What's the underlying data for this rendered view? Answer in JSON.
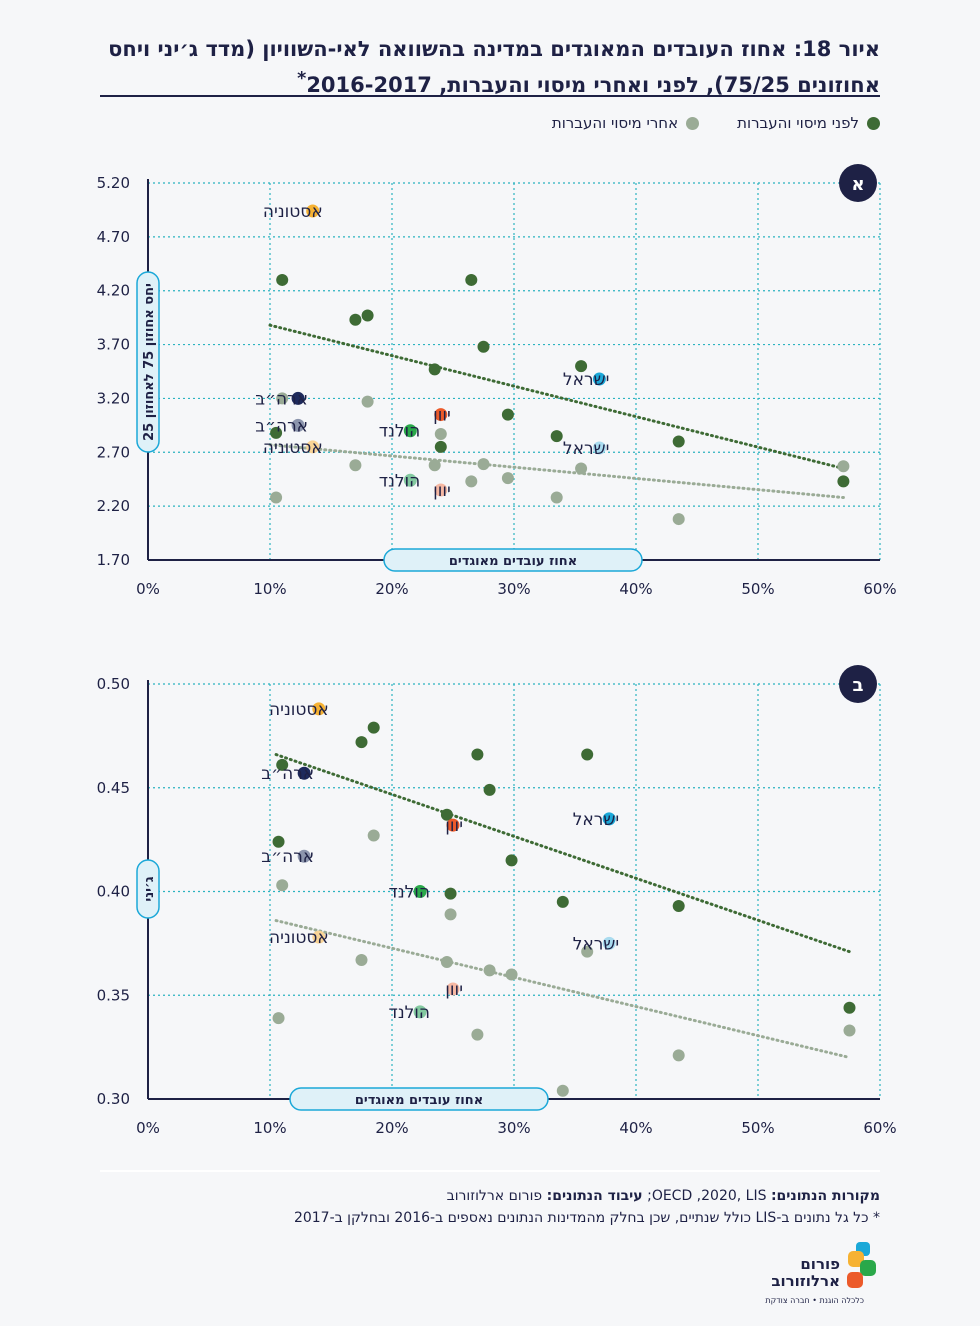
{
  "title": {
    "line1": "איור 18: אחוז העובדים המאוגדים במדינה בהשוואה לאי-השוויון (מדד ג׳יני ויחס",
    "line2": "אחוזונים 75/25), לפני ואחרי מיסוי והעברות, 2016-2017",
    "asterisk": "*"
  },
  "legend": {
    "before_label": "לפני מיסוי והעברות",
    "after_label": "אחרי מיסוי והעברות",
    "before_color": "#3e6b35",
    "after_color": "#9aab96"
  },
  "chart_data": [
    {
      "type": "scatter",
      "panel_badge": "א",
      "ylabel": "יחס אחוזון 75 לאחוזון 25",
      "xlabel": "אחוז עובדים מאוגדים",
      "xlim": [
        0,
        60
      ],
      "ylim": [
        1.7,
        5.2
      ],
      "x_ticks": [
        "0%",
        "10%",
        "20%",
        "30%",
        "40%",
        "50%",
        "60%"
      ],
      "y_ticks": [
        "1.70",
        "2.20",
        "2.70",
        "3.20",
        "3.70",
        "4.20",
        "4.70",
        "5.20"
      ],
      "series": [
        {
          "name": "לפני מיסוי והעברות",
          "points": [
            [
              10.5,
              2.88
            ],
            [
              11.0,
              4.3
            ],
            [
              17.0,
              3.93
            ],
            [
              18.0,
              3.97
            ],
            [
              23.5,
              3.47
            ],
            [
              24.0,
              2.75
            ],
            [
              26.5,
              4.3
            ],
            [
              27.5,
              3.68
            ],
            [
              29.5,
              3.05
            ],
            [
              33.5,
              2.85
            ],
            [
              35.5,
              3.5
            ],
            [
              43.5,
              2.8
            ],
            [
              57.0,
              2.43
            ]
          ],
          "trend": [
            [
              10.0,
              3.88
            ],
            [
              57.0,
              2.55
            ]
          ]
        },
        {
          "name": "אחרי מיסוי והעברות",
          "points": [
            [
              10.5,
              2.28
            ],
            [
              11.0,
              3.2
            ],
            [
              17.0,
              2.58
            ],
            [
              18.0,
              3.17
            ],
            [
              23.5,
              2.58
            ],
            [
              24.0,
              2.87
            ],
            [
              26.5,
              2.43
            ],
            [
              27.5,
              2.59
            ],
            [
              29.5,
              2.46
            ],
            [
              33.5,
              2.28
            ],
            [
              35.5,
              2.55
            ],
            [
              43.5,
              2.08
            ],
            [
              57.0,
              2.57
            ]
          ],
          "trend": [
            [
              10.0,
              2.77
            ],
            [
              57.0,
              2.28
            ]
          ]
        }
      ],
      "highlights": [
        {
          "label": "אסטוניה",
          "x": 13.5,
          "y": 4.94,
          "color": "#f6b233"
        },
        {
          "label": "אסטוניה",
          "x": 13.5,
          "y": 2.75,
          "color": "#f9d496"
        },
        {
          "label": "ארה״ב",
          "x": 12.3,
          "y": 3.2,
          "color": "#1e2a5c"
        },
        {
          "label": "ארה״ב",
          "x": 12.3,
          "y": 2.95,
          "color": "#8c95ad"
        },
        {
          "label": "הולנד",
          "x": 21.5,
          "y": 2.9,
          "color": "#2aa84a"
        },
        {
          "label": "הולנד",
          "x": 21.5,
          "y": 2.44,
          "color": "#83c9a0"
        },
        {
          "label": "יוון",
          "x": 24.0,
          "y": 3.05,
          "color": "#ec5a2a"
        },
        {
          "label": "יוון",
          "x": 24.0,
          "y": 2.35,
          "color": "#f6b8a3"
        },
        {
          "label": "ישראל",
          "x": 37.0,
          "y": 3.38,
          "color": "#1ba8d8"
        },
        {
          "label": "ישראל",
          "x": 37.0,
          "y": 2.74,
          "color": "#a9dbef"
        }
      ]
    },
    {
      "type": "scatter",
      "panel_badge": "ב",
      "ylabel": "ג׳יני",
      "xlabel": "אחוז עובדים מאוגדים",
      "xlim": [
        0,
        60
      ],
      "ylim": [
        0.3,
        0.5
      ],
      "x_ticks": [
        "0%",
        "10%",
        "20%",
        "30%",
        "40%",
        "50%",
        "60%"
      ],
      "y_ticks": [
        "0.30",
        "0.35",
        "0.40",
        "0.45",
        "0.50"
      ],
      "series": [
        {
          "name": "לפני מיסוי והעברות",
          "points": [
            [
              10.7,
              0.424
            ],
            [
              11.0,
              0.461
            ],
            [
              17.5,
              0.472
            ],
            [
              18.5,
              0.479
            ],
            [
              24.5,
              0.437
            ],
            [
              24.8,
              0.399
            ],
            [
              27.0,
              0.466
            ],
            [
              28.0,
              0.449
            ],
            [
              29.8,
              0.415
            ],
            [
              34.0,
              0.395
            ],
            [
              36.0,
              0.466
            ],
            [
              43.5,
              0.393
            ],
            [
              57.5,
              0.344
            ]
          ],
          "trend": [
            [
              10.5,
              0.466
            ],
            [
              57.5,
              0.371
            ]
          ]
        },
        {
          "name": "אחרי מיסוי והעברות",
          "points": [
            [
              10.7,
              0.339
            ],
            [
              11.0,
              0.403
            ],
            [
              17.5,
              0.367
            ],
            [
              18.5,
              0.427
            ],
            [
              24.5,
              0.366
            ],
            [
              24.8,
              0.389
            ],
            [
              27.0,
              0.331
            ],
            [
              28.0,
              0.362
            ],
            [
              29.8,
              0.36
            ],
            [
              34.0,
              0.304
            ],
            [
              36.0,
              0.371
            ],
            [
              43.5,
              0.321
            ],
            [
              57.5,
              0.333
            ]
          ],
          "trend": [
            [
              10.5,
              0.386
            ],
            [
              57.5,
              0.32
            ]
          ]
        }
      ],
      "highlights": [
        {
          "label": "אסטוניה",
          "x": 14.0,
          "y": 0.488,
          "color": "#f6b233"
        },
        {
          "label": "אסטוניה",
          "x": 14.0,
          "y": 0.378,
          "color": "#f9d496"
        },
        {
          "label": "ארה״ב",
          "x": 12.8,
          "y": 0.457,
          "color": "#1e2a5c"
        },
        {
          "label": "ארה״ב",
          "x": 12.8,
          "y": 0.417,
          "color": "#8c95ad"
        },
        {
          "label": "הולנד",
          "x": 22.3,
          "y": 0.4,
          "color": "#2aa84a"
        },
        {
          "label": "הולנד",
          "x": 22.3,
          "y": 0.342,
          "color": "#83c9a0"
        },
        {
          "label": "יוון",
          "x": 25.0,
          "y": 0.432,
          "color": "#ec5a2a"
        },
        {
          "label": "יוון",
          "x": 25.0,
          "y": 0.353,
          "color": "#f6b8a3"
        },
        {
          "label": "ישראל",
          "x": 37.8,
          "y": 0.435,
          "color": "#1ba8d8"
        },
        {
          "label": "ישראל",
          "x": 37.8,
          "y": 0.375,
          "color": "#a9dbef"
        }
      ]
    }
  ],
  "footer": {
    "sources_label": "מקורות הנתונים:",
    "sources_value": "OECD ,2020, LIS;",
    "processing_label": "עיבוד הנתונים:",
    "processing_value": "פורום ארלוזורוב",
    "note": "* כל גל נתונים ב-LIS כולל שנתיים, שכן בחלק מהמדינות הנתונים נאספים ב-2016 ובחלקן ב-2017"
  },
  "logo": {
    "name_line1": "פורום",
    "name_line2": "ארלוזורוב",
    "tagline": "כלכלה הוגנת • חברה צודקת"
  }
}
